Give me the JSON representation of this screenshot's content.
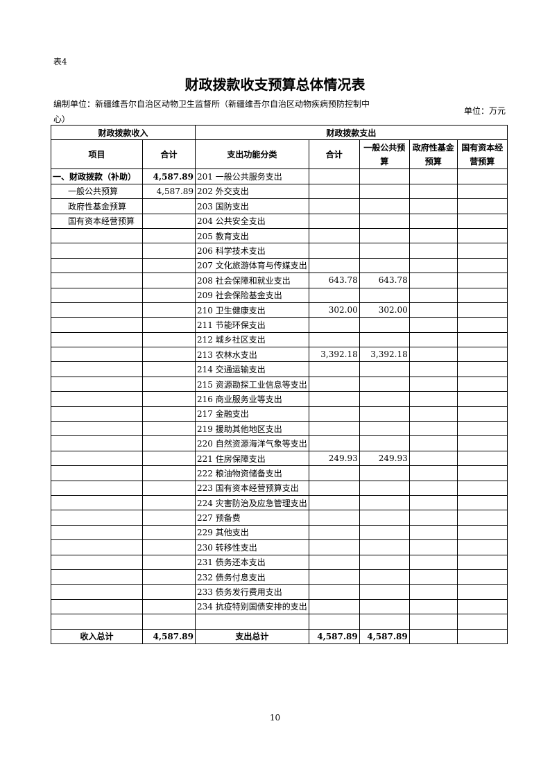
{
  "header": {
    "label": "表4",
    "title": "财政拨款收支预算总体情况表",
    "unit_org": "编制单位：新疆维吾尔自治区动物卫生监督所（新疆维吾尔自治区动物疾病预防控制中心）",
    "unit": "单位：万元"
  },
  "table": {
    "group_headers": [
      "财政拨款收入",
      "财政拨款支出"
    ],
    "columns": {
      "item": "项目",
      "total": "合计",
      "func": "支出功能分类",
      "exp_total": "合计",
      "general": "一般公共预算",
      "fund": "政府性基金预算",
      "capital": "国有资本经营预算"
    },
    "rows": [
      {
        "item": "一、财政拨款（补助）",
        "total": "4,587.89",
        "func": "201 一般公共服务支出"
      },
      {
        "item": "一般公共预算",
        "total": "4,587.89",
        "func": "202 外交支出"
      },
      {
        "item": "政府性基金预算",
        "func": "203 国防支出"
      },
      {
        "item": "国有资本经营预算",
        "func": "204 公共安全支出"
      },
      {
        "func": "205 教育支出"
      },
      {
        "func": "206 科学技术支出"
      },
      {
        "func": "207 文化旅游体育与传媒支出"
      },
      {
        "func": "208 社会保障和就业支出",
        "exp_total": "643.78",
        "general": "643.78"
      },
      {
        "func": "209 社会保险基金支出"
      },
      {
        "func": "210 卫生健康支出",
        "exp_total": "302.00",
        "general": "302.00"
      },
      {
        "func": "211 节能环保支出"
      },
      {
        "func": "212 城乡社区支出"
      },
      {
        "func": "213 农林水支出",
        "exp_total": "3,392.18",
        "general": "3,392.18"
      },
      {
        "func": "214 交通运输支出"
      },
      {
        "func": "215 资源勘探工业信息等支出"
      },
      {
        "func": "216 商业服务业等支出"
      },
      {
        "func": "217 金融支出"
      },
      {
        "func": "219 援助其他地区支出"
      },
      {
        "func": "220 自然资源海洋气象等支出"
      },
      {
        "func": "221 住房保障支出",
        "exp_total": "249.93",
        "general": "249.93"
      },
      {
        "func": "222 粮油物资储备支出"
      },
      {
        "func": "223 国有资本经营预算支出"
      },
      {
        "func": "224 灾害防治及应急管理支出"
      },
      {
        "func": "227 预备费"
      },
      {
        "func": "229 其他支出"
      },
      {
        "func": "230 转移性支出"
      },
      {
        "func": "231 债务还本支出"
      },
      {
        "func": "232 债务付息支出"
      },
      {
        "func": "233 债务发行费用支出"
      },
      {
        "func": "234 抗疫特别国债安排的支出"
      }
    ],
    "total_row": {
      "item": "收入总计",
      "total": "4,587.89",
      "func": "支出总计",
      "exp_total": "4,587.89",
      "general": "4,587.89"
    }
  },
  "footer": {
    "page": "10"
  }
}
